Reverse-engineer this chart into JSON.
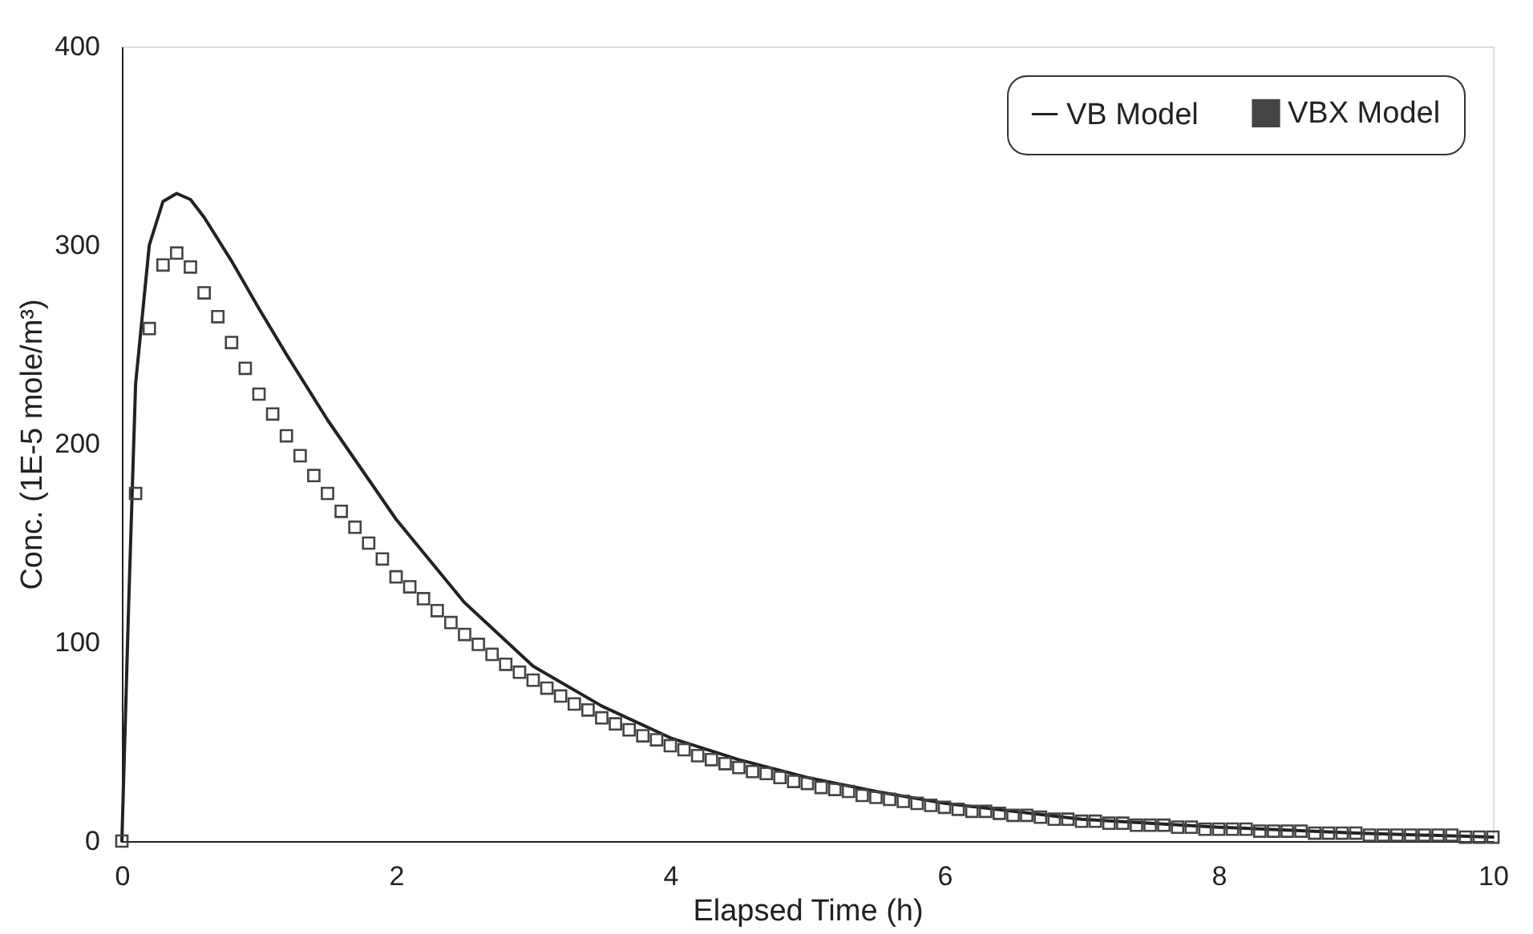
{
  "chart_data": {
    "type": "line",
    "xlabel": "Elapsed Time (h)",
    "ylabel": "Conc. (1E-5 mole/m³)",
    "xlim": [
      0,
      10
    ],
    "xticks": [
      0,
      2,
      4,
      6,
      8,
      10
    ],
    "ylim": [
      0,
      400
    ],
    "yticks": [
      0,
      100,
      200,
      300,
      400
    ],
    "grid": false,
    "legend": "top right",
    "series": [
      {
        "name": "VB Model",
        "color": "#222222",
        "line_style": "solid",
        "x": [
          0,
          0.05,
          0.1,
          0.2,
          0.3,
          0.4,
          0.5,
          0.6,
          0.8,
          1.0,
          1.2,
          1.5,
          2.0,
          2.5,
          3.0,
          3.5,
          4.0,
          4.5,
          5.0,
          5.5,
          6.0,
          7.0,
          8.0,
          9.0,
          10.0
        ],
        "values": [
          0,
          120,
          230,
          300,
          322,
          326,
          323,
          314,
          292,
          268,
          245,
          212,
          162,
          120,
          88,
          68,
          52,
          41,
          32,
          25,
          19,
          11,
          7,
          4,
          2
        ]
      },
      {
        "name": "VBX Model",
        "type": "scatter",
        "marker": "square",
        "color": "#444444",
        "x": [
          0,
          0.1,
          0.2,
          0.3,
          0.4,
          0.5,
          0.6,
          0.7,
          0.8,
          0.9,
          1.0,
          1.1,
          1.2,
          1.3,
          1.4,
          1.5,
          1.6,
          1.7,
          1.8,
          1.9,
          2.0,
          2.1,
          2.2,
          2.3,
          2.4,
          2.5,
          2.6,
          2.7,
          2.8,
          2.9,
          3.0,
          3.1,
          3.2,
          3.3,
          3.4,
          3.5,
          3.6,
          3.7,
          3.8,
          3.9,
          4.0,
          4.1,
          4.2,
          4.3,
          4.4,
          4.5,
          4.6,
          4.7,
          4.8,
          4.9,
          5.0,
          5.1,
          5.2,
          5.3,
          5.4,
          5.5,
          5.6,
          5.7,
          5.8,
          5.9,
          6.0,
          6.1,
          6.2,
          6.3,
          6.4,
          6.5,
          6.6,
          6.7,
          6.8,
          6.9,
          7.0,
          7.1,
          7.2,
          7.3,
          7.4,
          7.5,
          7.6,
          7.7,
          7.8,
          7.9,
          8.0,
          8.1,
          8.2,
          8.3,
          8.4,
          8.5,
          8.6,
          8.7,
          8.8,
          8.9,
          9.0,
          9.1,
          9.2,
          9.3,
          9.4,
          9.5,
          9.6,
          9.7,
          9.8,
          9.9,
          10.0
        ],
        "values": [
          0,
          175,
          258,
          290,
          296,
          289,
          276,
          264,
          251,
          238,
          225,
          215,
          204,
          194,
          184,
          175,
          166,
          158,
          150,
          142,
          133,
          128,
          122,
          116,
          110,
          104,
          99,
          94,
          89,
          85,
          81,
          77,
          73,
          69,
          66,
          62,
          59,
          56,
          53,
          51,
          48,
          46,
          43,
          41,
          39,
          37,
          35,
          34,
          32,
          30,
          29,
          27,
          26,
          25,
          23,
          22,
          21,
          20,
          19,
          18,
          17,
          16,
          15,
          15,
          14,
          13,
          13,
          12,
          11,
          11,
          10,
          10,
          9,
          9,
          8,
          8,
          8,
          7,
          7,
          6,
          6,
          6,
          6,
          5,
          5,
          5,
          5,
          4,
          4,
          4,
          4,
          3,
          3,
          3,
          3,
          3,
          3,
          3,
          2,
          2,
          2
        ]
      }
    ]
  }
}
